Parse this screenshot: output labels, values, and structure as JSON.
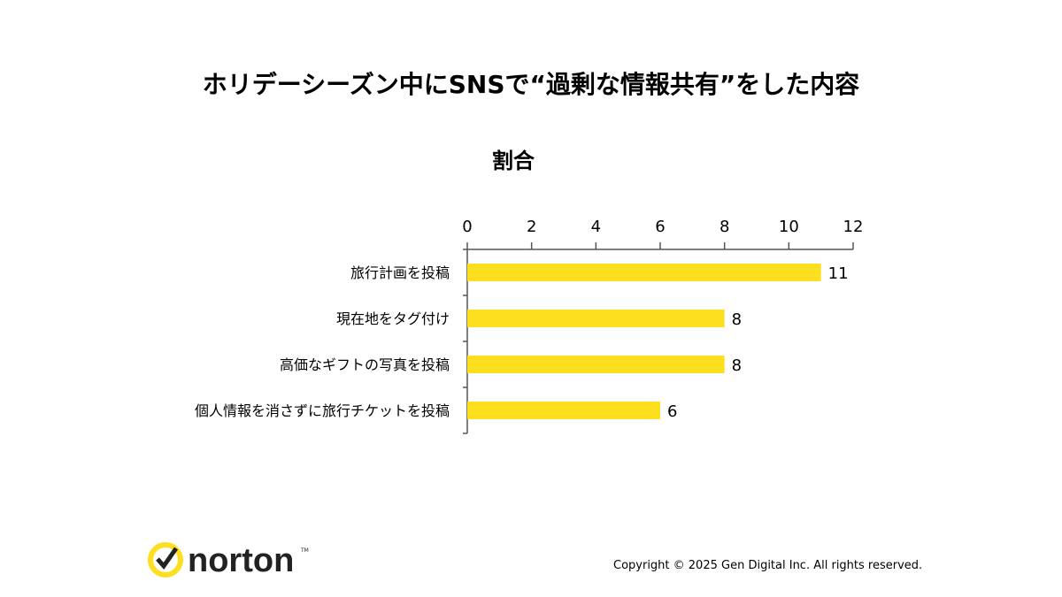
{
  "chart_data": {
    "type": "bar",
    "orientation": "horizontal",
    "title": "ホリデーシーズン中にSNSで“過剰な情報共有”をした内容",
    "subtitle": "割合",
    "categories": [
      "旅行計画を投稿",
      "現在地をタグ付け",
      "高価なギフトの写真を投稿",
      "個人情報を消さずに旅行チケットを投稿"
    ],
    "values": [
      11,
      8,
      8,
      6
    ],
    "xlim": [
      0,
      12
    ],
    "xticks": [
      "0",
      "2",
      "4",
      "6",
      "8",
      "10",
      "12"
    ],
    "xlabel": "",
    "ylabel": "",
    "grid": false,
    "bar_color": "#FDDF1F"
  },
  "footer": {
    "logo_text": "norton",
    "copyright": "Copyright © 2025 Gen Digital Inc. All rights reserved."
  }
}
